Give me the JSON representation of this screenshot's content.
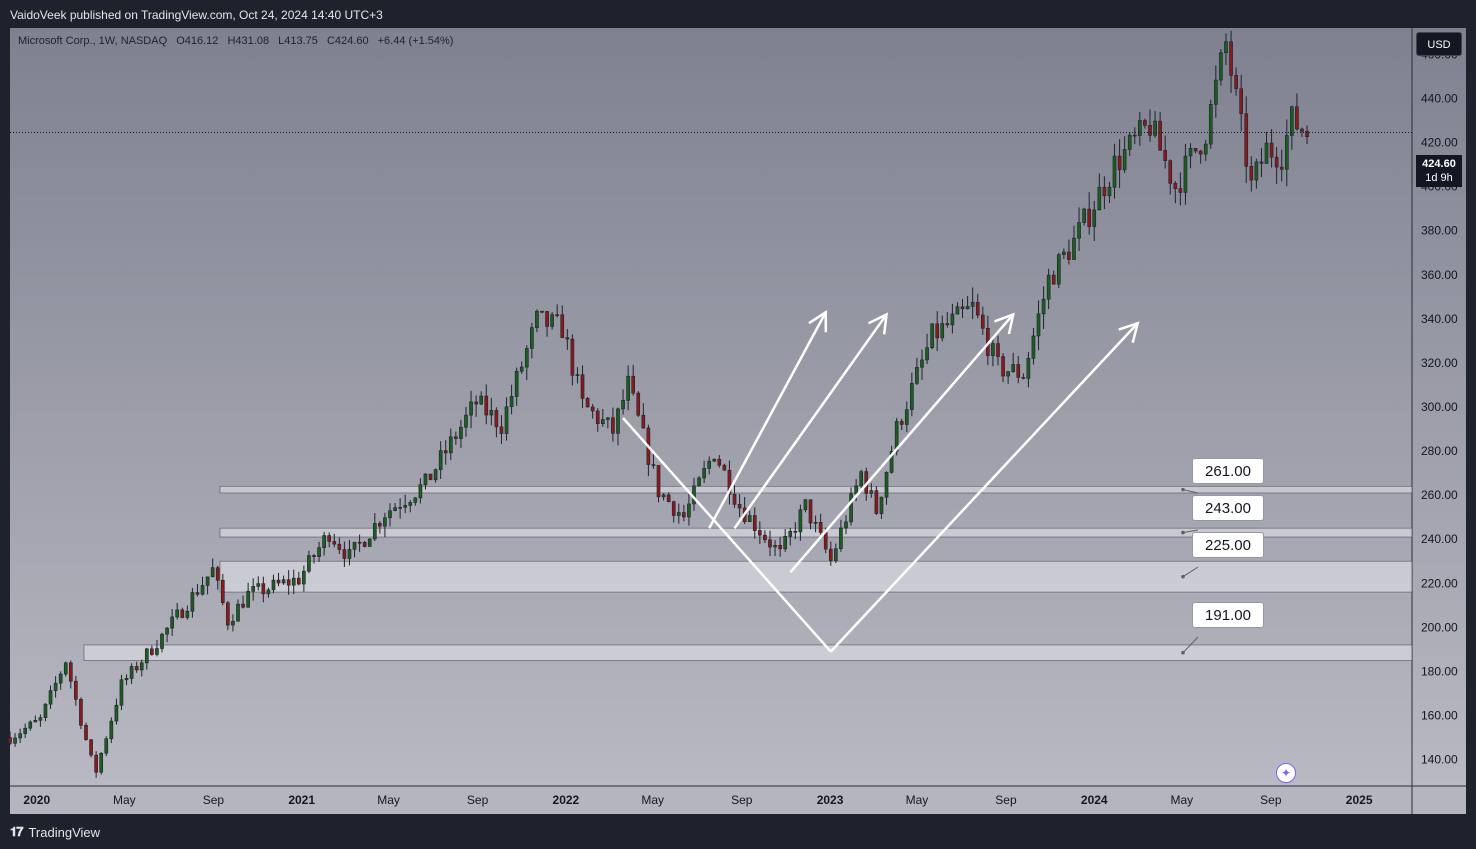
{
  "header": {
    "publisher_line": "VaidoVeek published on TradingView.com, Oct 24, 2024 14:40 UTC+3"
  },
  "legend": {
    "symbol": "Microsoft Corp., 1W, NASDAQ",
    "open": "O416.12",
    "high": "H431.08",
    "low": "L413.75",
    "close": "C424.60",
    "change": "+6.44 (+1.54%)"
  },
  "price_scale": {
    "currency": "USD",
    "last_price": "424.60",
    "countdown": "1d 9h",
    "ticks": [
      "460.00",
      "440.00",
      "420.00",
      "400.00",
      "380.00",
      "360.00",
      "340.00",
      "320.00",
      "300.00",
      "280.00",
      "260.00",
      "240.00",
      "220.00",
      "200.00",
      "180.00",
      "160.00",
      "140.00"
    ]
  },
  "time_scale": {
    "ticks": [
      {
        "label": "2020",
        "bold": true,
        "date": "2020-01"
      },
      {
        "label": "May",
        "bold": false,
        "date": "2020-05"
      },
      {
        "label": "Sep",
        "bold": false,
        "date": "2020-09"
      },
      {
        "label": "2021",
        "bold": true,
        "date": "2021-01"
      },
      {
        "label": "May",
        "bold": false,
        "date": "2021-05"
      },
      {
        "label": "Sep",
        "bold": false,
        "date": "2021-09"
      },
      {
        "label": "2022",
        "bold": true,
        "date": "2022-01"
      },
      {
        "label": "May",
        "bold": false,
        "date": "2022-05"
      },
      {
        "label": "Sep",
        "bold": false,
        "date": "2022-09"
      },
      {
        "label": "2023",
        "bold": true,
        "date": "2023-01"
      },
      {
        "label": "May",
        "bold": false,
        "date": "2023-05"
      },
      {
        "label": "Sep",
        "bold": false,
        "date": "2023-09"
      },
      {
        "label": "2024",
        "bold": true,
        "date": "2024-01"
      },
      {
        "label": "May",
        "bold": false,
        "date": "2024-05"
      },
      {
        "label": "Sep",
        "bold": false,
        "date": "2024-09"
      },
      {
        "label": "2025",
        "bold": true,
        "date": "2025-01"
      }
    ]
  },
  "levels": [
    {
      "label": "261.00",
      "zone": [
        261,
        264
      ]
    },
    {
      "label": "243.00",
      "zone": [
        241,
        245
      ]
    },
    {
      "label": "225.00",
      "zone": [
        216,
        230
      ]
    },
    {
      "label": "191.00",
      "zone": [
        185,
        192
      ]
    }
  ],
  "footer": {
    "brand": "TradingView"
  },
  "colors": {
    "up": "#26a69a",
    "down": "#ef5350",
    "candle_up": "#1b5e20",
    "candle_down": "#8b1a1a",
    "arrow": "#ffffff"
  },
  "chart_data": {
    "type": "candlestick",
    "interval": "1W",
    "y_range": [
      128,
      472
    ],
    "x_range": [
      "2019-11-25",
      "2025-03-15"
    ],
    "anchor_points": [
      [
        "2019-11-25",
        150
      ],
      [
        "2020-01-06",
        158
      ],
      [
        "2020-02-10",
        185
      ],
      [
        "2020-03-16",
        140
      ],
      [
        "2020-03-23",
        135
      ],
      [
        "2020-04-27",
        174
      ],
      [
        "2020-06-22",
        196
      ],
      [
        "2020-08-31",
        226
      ],
      [
        "2020-09-21",
        203
      ],
      [
        "2020-10-19",
        215
      ],
      [
        "2020-12-28",
        222
      ],
      [
        "2021-02-08",
        243
      ],
      [
        "2021-03-08",
        232
      ],
      [
        "2021-04-26",
        252
      ],
      [
        "2021-06-21",
        265
      ],
      [
        "2021-08-30",
        302
      ],
      [
        "2021-10-04",
        292
      ],
      [
        "2021-11-22",
        339
      ],
      [
        "2021-12-27",
        336
      ],
      [
        "2022-01-24",
        301
      ],
      [
        "2022-03-07",
        289
      ],
      [
        "2022-03-28",
        310
      ],
      [
        "2022-05-09",
        262
      ],
      [
        "2022-06-13",
        250
      ],
      [
        "2022-07-25",
        280
      ],
      [
        "2022-08-29",
        255
      ],
      [
        "2022-10-24",
        233
      ],
      [
        "2022-11-28",
        255
      ],
      [
        "2023-01-02",
        230
      ],
      [
        "2023-02-13",
        270
      ],
      [
        "2023-03-06",
        253
      ],
      [
        "2023-04-03",
        290
      ],
      [
        "2023-05-22",
        332
      ],
      [
        "2023-07-17",
        345
      ],
      [
        "2023-08-21",
        318
      ],
      [
        "2023-09-25",
        315
      ],
      [
        "2023-10-30",
        358
      ],
      [
        "2023-12-04",
        375
      ],
      [
        "2024-01-29",
        410
      ],
      [
        "2024-03-18",
        428
      ],
      [
        "2024-04-22",
        400
      ],
      [
        "2024-06-03",
        425
      ],
      [
        "2024-07-01",
        465
      ],
      [
        "2024-08-05",
        400
      ],
      [
        "2024-08-26",
        417
      ],
      [
        "2024-09-16",
        415
      ],
      [
        "2024-09-30",
        430
      ],
      [
        "2024-10-21",
        424.6
      ]
    ]
  },
  "drawings": {
    "arrows": [
      {
        "from": [
          "2022-07-18",
          245
        ],
        "to": [
          "2022-12-26",
          343
        ]
      },
      {
        "from": [
          "2022-08-22",
          245
        ],
        "to": [
          "2023-03-20",
          342
        ]
      },
      {
        "from": [
          "2022-11-07",
          225
        ],
        "to": [
          "2023-09-11",
          342
        ]
      },
      {
        "from": [
          "2023-01-02",
          189
        ],
        "to": [
          "2024-03-01",
          338
        ]
      }
    ],
    "v_line": {
      "from": [
        "2022-03-21",
        295
      ],
      "to": [
        "2023-01-02",
        189
      ]
    }
  }
}
